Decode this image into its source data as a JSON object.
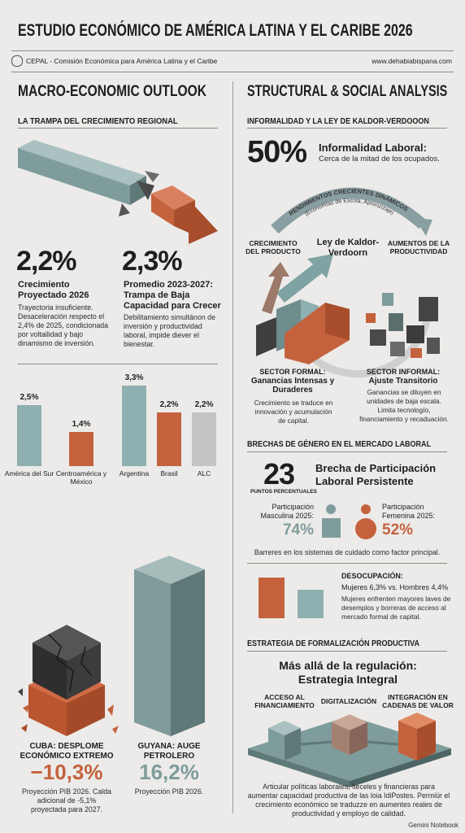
{
  "header": {
    "title": "ESTUDIO ECONÓMICO DE AMÉRICA LATINA Y EL CARIBE 2026",
    "source": "CEPAL - Comisión Económica para América Latina y el Caribe",
    "url": "www.dehabiabispana.com"
  },
  "left": {
    "heading": "MACRO-ECONOMIC OUTLOOK",
    "subheading": "LA TRAMPA DEL CRECIMIENTO REGIONAL",
    "stats": [
      {
        "value": "2,2%",
        "label": "Crecimiento Proyectado 2026",
        "description": "Trayectoria insuficiente. Desaceleración respecto el 2,4% de 2025, condicionada por voltailidad y bajo dinamismo de inversión."
      },
      {
        "value": "2,3%",
        "label": "Promedio 2023-2027: Trampa de Baja Capacidad para Crecer",
        "description": "Debilitamiento simultánon de inversión y productividad laboral, impide diever el bienestar."
      }
    ],
    "bar_chart": {
      "categories": [
        "América del Sur",
        "Centroamérica y México",
        "Argentina",
        "Brasil",
        "ALC"
      ],
      "values": [
        2.5,
        1.4,
        3.3,
        2.2,
        2.2
      ],
      "value_labels": [
        "2,5%",
        "1,4%",
        "3,3%",
        "2,2%",
        "2,2%"
      ],
      "colors": [
        "#8fb0b0",
        "#c4623d",
        "#8fb0b0",
        "#c4623d",
        "#c4c4c4"
      ]
    },
    "cuba": {
      "label": "CUBA: DESPLOME ECONÓMICO EXTREMO",
      "value": "−10,3%",
      "description": "Proyección PIB 2026. Calda adicional de -5,1% proyectada para 2027."
    },
    "guyana": {
      "label": "GUYANA: AUGE PETROLERO",
      "value": "16,2%",
      "description": "Proyección PIB 2026."
    }
  },
  "right": {
    "heading": "STRUCTURAL & SOCIAL ANALYSIS",
    "kaldor": {
      "heading": "INFORMALIDAD Y LA LEY DE KALDOR-VERDOOON",
      "value": "50%",
      "label": "Informalidad Laboral:",
      "description": "Cerca de la mitad de los ocupados.",
      "arc_title": "RENDIMIENTOS CRECIENTES DINÁMICOS",
      "arc_subtitle": "(Economías de Escola, Aprenzizaje)",
      "nodes": [
        "CRECIMIENTO DEL PRODUCTO",
        "Ley de Kaldor-Verdoorn",
        "AUMENTOS DE LA PRODUCTIVIDAD"
      ],
      "sectors": [
        {
          "title": "SECTOR FORMAL:",
          "subtitle": "Ganancias Intensas y Duraderes",
          "description": "Crecimiento se traduce en innovación y acumulación de capital."
        },
        {
          "title": "SECTOR INFORMAL:",
          "subtitle": "Ajuste Transitorio",
          "description": "Ganancias se diluyen en unidades de baja escala. Limita tecnologío, financiamiento y recaduación."
        }
      ]
    },
    "gender": {
      "heading": "BRECHAS DE GÉNERO EN EL MERCADO LABORAL",
      "gap": "23",
      "gap_unit": "PUNTOS PERCENTUALES",
      "gap_label": "Brecha de Participación Laboral Persistente",
      "male": {
        "label": "Participación Masculina 2025:",
        "value": "74%"
      },
      "female": {
        "label": "Participación Femenina 2025:",
        "value": "52%"
      },
      "note": "Barreres en los sistemas de cuidado como factor principal."
    },
    "unemployment": {
      "title": "DESOCUPACIÓN:",
      "rates": "Mujeres 6,3% vs. Hombres 4,4%",
      "description": "Mujeres enfrenten mayores laves de desemplos y borreras de acceso al mercado formal de capital.",
      "values": [
        6.3,
        4.4
      ],
      "colors": [
        "#c4623d",
        "#8fb0b0"
      ]
    },
    "strategy": {
      "heading": "ESTRATEGIA DE FORMALIZACIÓN PRODUCTIVA",
      "title": "Más allá de la regulación: Estrategia Integral",
      "pillars": [
        "ACCESO AL FINANCIAMIENTO",
        "DIGITALIZACIÓN",
        "INTEGRACIÓN EN CADENAS DE VALOR"
      ],
      "description": "Articular políticas laborales, fieceles y financieras para aumentar capacidad productiva de las loia IdiPostes. Permiür el crecimiento económico se traduzze en aumentes reales de productividad y employo de calidad."
    }
  },
  "footer": "Gemini Notebook"
}
